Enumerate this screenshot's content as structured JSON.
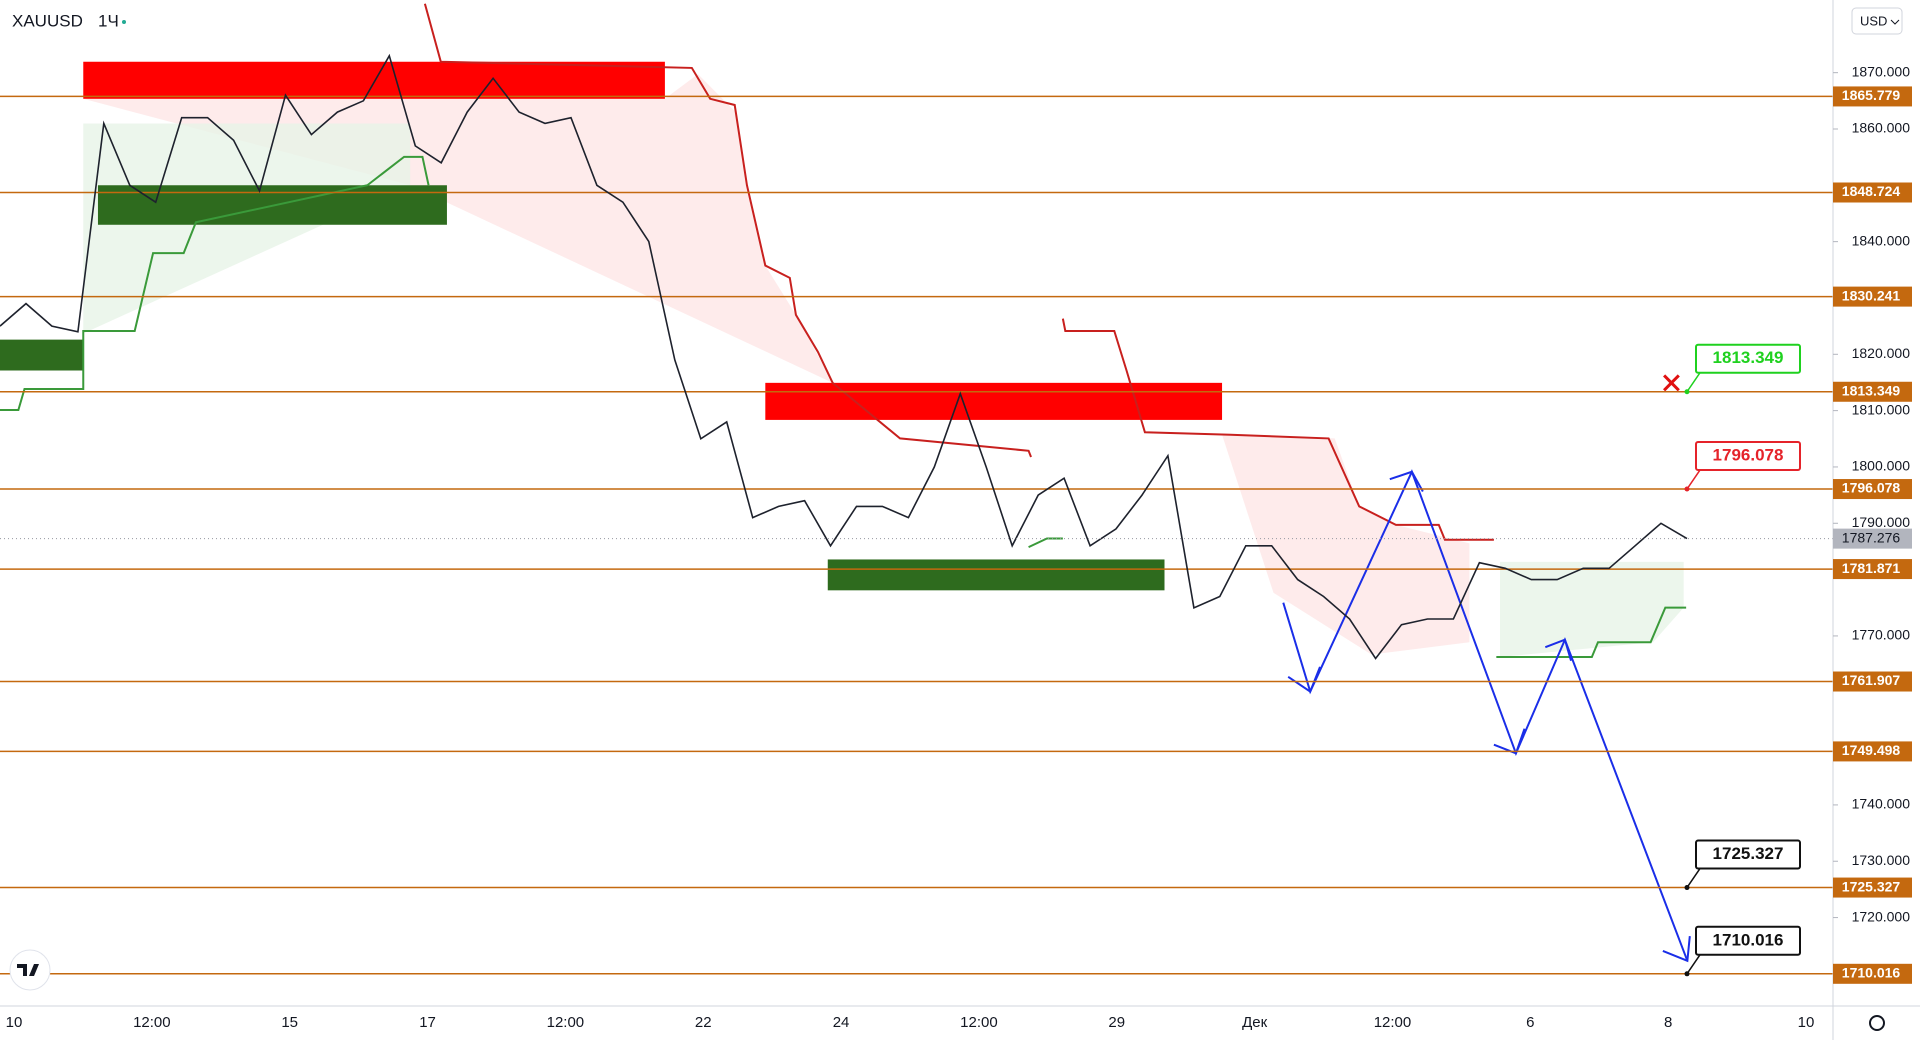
{
  "header": {
    "symbol": "XAUUSD",
    "interval": "1Ч",
    "currency": "USD"
  },
  "chart_data": {
    "type": "line",
    "color": "#1e222d",
    "values": [
      1825,
      1829,
      1825,
      1824,
      1861,
      1850,
      1847,
      1862,
      1862,
      1858,
      1849,
      1866,
      1859,
      1863,
      1865,
      1873,
      1857,
      1854,
      1863,
      1869,
      1863,
      1861,
      1862,
      1850,
      1847,
      1840,
      1819,
      1805,
      1808,
      1791,
      1793,
      1794,
      1786,
      1793,
      1793,
      1791,
      1800,
      1813,
      1800,
      1786,
      1795,
      1798,
      1786,
      1789,
      1795,
      1802,
      1775,
      1777,
      1786,
      1786,
      1780,
      1777,
      1773,
      1766,
      1772,
      1773,
      1773,
      1783,
      1782,
      1780,
      1780,
      1782,
      1782,
      1786,
      1790,
      1787.276
    ],
    "last_price": 1787.276,
    "levels": [
      1865.779,
      1848.724,
      1830.241,
      1813.349,
      1796.078,
      1781.871,
      1761.907,
      1749.498,
      1725.327,
      1710.016
    ],
    "level_color": "#c4690f",
    "callouts": [
      {
        "value": 1813.349,
        "color": "#1fd11f"
      },
      {
        "value": 1796.078,
        "color": "#e5232a"
      },
      {
        "value": 1725.327,
        "color": "#111111"
      },
      {
        "value": 1710.016,
        "color": "#111111"
      }
    ],
    "ylim": [
      1704.3,
      1882.9
    ],
    "yticks": [
      {
        "value": 1870,
        "label": "1870.000"
      },
      {
        "value": 1860,
        "label": "1860.000"
      },
      {
        "value": 1840,
        "label": "1840.000"
      },
      {
        "value": 1820,
        "label": "1820.000"
      },
      {
        "value": 1810,
        "label": "1810.000"
      },
      {
        "value": 1800,
        "label": "1800.000"
      },
      {
        "value": 1790,
        "label": "1790.000"
      },
      {
        "value": 1770,
        "label": "1770.000"
      },
      {
        "value": 1740,
        "label": "1740.000"
      },
      {
        "value": 1730,
        "label": "1730.000"
      },
      {
        "value": 1720,
        "label": "1720.000"
      }
    ],
    "time_labels": [
      "10",
      "12:00",
      "15",
      "17",
      "12:00",
      "22",
      "24",
      "12:00",
      "29",
      "Дек",
      "12:00",
      "6",
      "8",
      "10"
    ]
  }
}
